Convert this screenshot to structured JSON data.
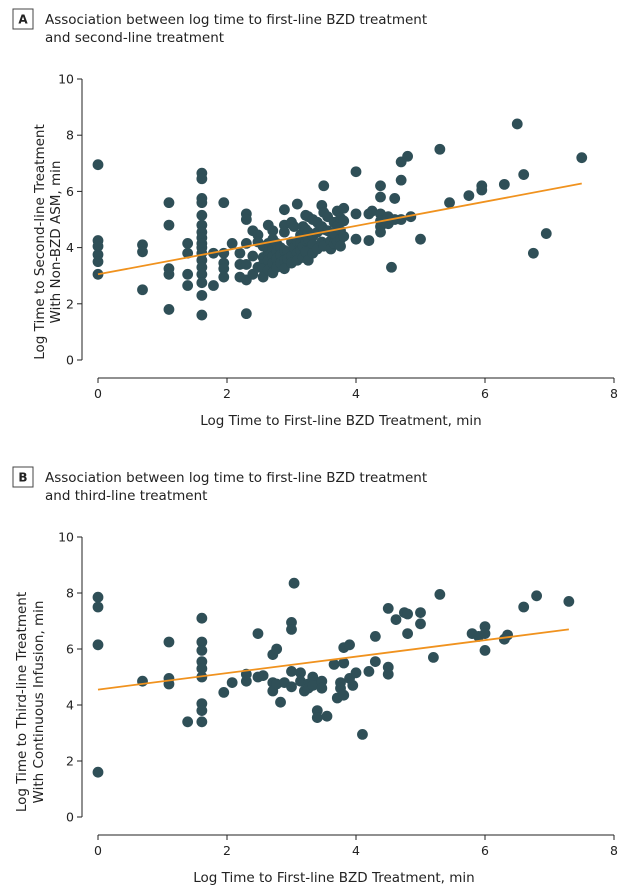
{
  "chart_data": [
    {
      "panel": "A",
      "type": "scatter",
      "title_lines": [
        "Association between log time to first-line BZD treatment",
        "and second-line treatment"
      ],
      "xlabel": "Log Time to First-line BZD Treatment, min",
      "ylabel_lines": [
        "Log Time to Second-line Treatment",
        "With Non-BZD ASM, min"
      ],
      "xlim": [
        0,
        8
      ],
      "ylim": [
        0,
        10
      ],
      "xticks": [
        0,
        2,
        4,
        6,
        8
      ],
      "yticks": [
        0,
        2,
        4,
        6,
        8,
        10
      ],
      "grid": false,
      "colors": {
        "point": "#2f4f57",
        "fit": "#f0921e"
      },
      "fit_line": {
        "x": [
          0,
          7.5
        ],
        "y": [
          3.05,
          6.28
        ]
      },
      "points": [
        [
          0,
          6.95
        ],
        [
          0,
          4.25
        ],
        [
          0,
          4.05
        ],
        [
          0,
          3.75
        ],
        [
          0,
          3.5
        ],
        [
          0,
          3.05
        ],
        [
          0.69,
          4.1
        ],
        [
          0.69,
          3.85
        ],
        [
          0.69,
          2.5
        ],
        [
          1.1,
          5.6
        ],
        [
          1.1,
          4.8
        ],
        [
          1.1,
          3.25
        ],
        [
          1.1,
          3.05
        ],
        [
          1.1,
          1.8
        ],
        [
          1.39,
          4.15
        ],
        [
          1.39,
          3.8
        ],
        [
          1.39,
          3.05
        ],
        [
          1.39,
          2.65
        ],
        [
          1.61,
          6.65
        ],
        [
          1.61,
          6.45
        ],
        [
          1.61,
          5.75
        ],
        [
          1.61,
          5.6
        ],
        [
          1.61,
          5.15
        ],
        [
          1.61,
          4.8
        ],
        [
          1.61,
          4.55
        ],
        [
          1.61,
          4.35
        ],
        [
          1.61,
          4.15
        ],
        [
          1.61,
          4.0
        ],
        [
          1.61,
          3.8
        ],
        [
          1.61,
          3.55
        ],
        [
          1.61,
          3.3
        ],
        [
          1.61,
          3.05
        ],
        [
          1.61,
          2.75
        ],
        [
          1.61,
          2.3
        ],
        [
          1.61,
          1.6
        ],
        [
          1.79,
          3.8
        ],
        [
          1.79,
          2.65
        ],
        [
          1.95,
          5.6
        ],
        [
          1.95,
          3.8
        ],
        [
          1.95,
          3.45
        ],
        [
          1.95,
          3.25
        ],
        [
          1.95,
          2.95
        ],
        [
          2.08,
          4.15
        ],
        [
          2.2,
          3.8
        ],
        [
          2.2,
          3.4
        ],
        [
          2.2,
          2.95
        ],
        [
          2.3,
          5.2
        ],
        [
          2.3,
          5.0
        ],
        [
          2.3,
          4.15
        ],
        [
          2.3,
          3.4
        ],
        [
          2.3,
          2.85
        ],
        [
          2.3,
          1.65
        ],
        [
          2.4,
          4.6
        ],
        [
          2.4,
          3.7
        ],
        [
          2.4,
          3.05
        ],
        [
          2.48,
          4.45
        ],
        [
          2.48,
          4.2
        ],
        [
          2.48,
          3.3
        ],
        [
          2.56,
          4.05
        ],
        [
          2.56,
          3.65
        ],
        [
          2.56,
          3.4
        ],
        [
          2.56,
          3.25
        ],
        [
          2.56,
          2.95
        ],
        [
          2.64,
          4.8
        ],
        [
          2.64,
          4.15
        ],
        [
          2.64,
          3.85
        ],
        [
          2.64,
          3.7
        ],
        [
          2.64,
          3.55
        ],
        [
          2.64,
          3.2
        ],
        [
          2.71,
          4.6
        ],
        [
          2.71,
          4.3
        ],
        [
          2.71,
          3.95
        ],
        [
          2.71,
          3.7
        ],
        [
          2.71,
          3.45
        ],
        [
          2.71,
          3.1
        ],
        [
          2.77,
          4.15
        ],
        [
          2.77,
          3.85
        ],
        [
          2.77,
          3.6
        ],
        [
          2.77,
          3.3
        ],
        [
          2.83,
          4.0
        ],
        [
          2.83,
          3.75
        ],
        [
          2.83,
          3.45
        ],
        [
          2.89,
          5.35
        ],
        [
          2.89,
          4.8
        ],
        [
          2.89,
          4.55
        ],
        [
          2.89,
          3.9
        ],
        [
          2.89,
          3.55
        ],
        [
          2.89,
          3.25
        ],
        [
          2.94,
          3.85
        ],
        [
          2.94,
          3.6
        ],
        [
          3.0,
          4.9
        ],
        [
          3.0,
          4.2
        ],
        [
          3.0,
          3.7
        ],
        [
          3.0,
          3.45
        ],
        [
          3.04,
          4.75
        ],
        [
          3.04,
          4.0
        ],
        [
          3.09,
          5.55
        ],
        [
          3.09,
          4.2
        ],
        [
          3.09,
          3.8
        ],
        [
          3.09,
          3.55
        ],
        [
          3.14,
          4.45
        ],
        [
          3.14,
          4.15
        ],
        [
          3.14,
          3.9
        ],
        [
          3.18,
          4.75
        ],
        [
          3.18,
          4.45
        ],
        [
          3.18,
          4.05
        ],
        [
          3.18,
          3.65
        ],
        [
          3.22,
          5.15
        ],
        [
          3.22,
          4.65
        ],
        [
          3.22,
          4.25
        ],
        [
          3.22,
          3.85
        ],
        [
          3.26,
          5.1
        ],
        [
          3.26,
          4.55
        ],
        [
          3.26,
          4.3
        ],
        [
          3.26,
          3.55
        ],
        [
          3.33,
          5.0
        ],
        [
          3.33,
          4.4
        ],
        [
          3.33,
          4.1
        ],
        [
          3.33,
          3.8
        ],
        [
          3.4,
          4.9
        ],
        [
          3.4,
          4.55
        ],
        [
          3.4,
          3.95
        ],
        [
          3.47,
          5.5
        ],
        [
          3.47,
          4.75
        ],
        [
          3.47,
          4.2
        ],
        [
          3.5,
          6.2
        ],
        [
          3.5,
          5.25
        ],
        [
          3.5,
          4.65
        ],
        [
          3.5,
          4.05
        ],
        [
          3.56,
          5.1
        ],
        [
          3.56,
          4.6
        ],
        [
          3.61,
          4.25
        ],
        [
          3.61,
          3.95
        ],
        [
          3.66,
          4.9
        ],
        [
          3.66,
          4.5
        ],
        [
          3.66,
          4.15
        ],
        [
          3.71,
          5.3
        ],
        [
          3.71,
          4.75
        ],
        [
          3.71,
          4.2
        ],
        [
          3.76,
          5.05
        ],
        [
          3.76,
          4.6
        ],
        [
          3.76,
          4.3
        ],
        [
          3.76,
          4.05
        ],
        [
          3.81,
          5.4
        ],
        [
          3.81,
          4.95
        ],
        [
          3.81,
          4.4
        ],
        [
          4.0,
          6.7
        ],
        [
          4.0,
          5.2
        ],
        [
          4.0,
          4.3
        ],
        [
          4.2,
          5.2
        ],
        [
          4.2,
          4.25
        ],
        [
          4.25,
          5.3
        ],
        [
          4.38,
          6.2
        ],
        [
          4.38,
          5.8
        ],
        [
          4.38,
          5.2
        ],
        [
          4.38,
          4.95
        ],
        [
          4.38,
          4.75
        ],
        [
          4.38,
          4.55
        ],
        [
          4.5,
          5.1
        ],
        [
          4.5,
          4.85
        ],
        [
          4.55,
          3.3
        ],
        [
          4.6,
          5.75
        ],
        [
          4.6,
          5.0
        ],
        [
          4.7,
          7.05
        ],
        [
          4.7,
          6.4
        ],
        [
          4.7,
          5.0
        ],
        [
          4.8,
          7.25
        ],
        [
          4.85,
          5.1
        ],
        [
          5.0,
          4.3
        ],
        [
          5.3,
          7.5
        ],
        [
          5.45,
          5.6
        ],
        [
          5.75,
          5.85
        ],
        [
          5.95,
          6.2
        ],
        [
          5.95,
          6.05
        ],
        [
          6.3,
          6.25
        ],
        [
          6.5,
          8.4
        ],
        [
          6.6,
          6.6
        ],
        [
          6.75,
          3.8
        ],
        [
          6.95,
          4.5
        ],
        [
          7.5,
          7.2
        ]
      ]
    },
    {
      "panel": "B",
      "type": "scatter",
      "title_lines": [
        "Association between log time to first-line BZD treatment",
        "and third-line treatment"
      ],
      "xlabel": "Log Time to First-line BZD Treatment, min",
      "ylabel_lines": [
        "Log Time to Third-line Treatment",
        "With Continuous Infusion, min"
      ],
      "xlim": [
        0,
        8
      ],
      "ylim": [
        0,
        10
      ],
      "xticks": [
        0,
        2,
        4,
        6,
        8
      ],
      "yticks": [
        0,
        2,
        4,
        6,
        8,
        10
      ],
      "grid": false,
      "colors": {
        "point": "#2f4f57",
        "fit": "#f0921e"
      },
      "fit_line": {
        "x": [
          0,
          7.3
        ],
        "y": [
          4.55,
          6.7
        ]
      },
      "points": [
        [
          0,
          7.85
        ],
        [
          0,
          7.5
        ],
        [
          0,
          6.15
        ],
        [
          0,
          1.6
        ],
        [
          0.69,
          4.85
        ],
        [
          1.1,
          6.25
        ],
        [
          1.1,
          4.95
        ],
        [
          1.1,
          4.75
        ],
        [
          1.39,
          3.4
        ],
        [
          1.61,
          7.1
        ],
        [
          1.61,
          6.25
        ],
        [
          1.61,
          5.95
        ],
        [
          1.61,
          5.55
        ],
        [
          1.61,
          5.3
        ],
        [
          1.61,
          5.0
        ],
        [
          1.61,
          4.05
        ],
        [
          1.61,
          3.8
        ],
        [
          1.61,
          3.4
        ],
        [
          1.95,
          4.45
        ],
        [
          2.08,
          4.8
        ],
        [
          2.3,
          5.1
        ],
        [
          2.3,
          4.85
        ],
        [
          2.48,
          6.55
        ],
        [
          2.48,
          5.0
        ],
        [
          2.56,
          5.05
        ],
        [
          2.71,
          5.8
        ],
        [
          2.71,
          4.8
        ],
        [
          2.71,
          4.5
        ],
        [
          2.77,
          6.0
        ],
        [
          2.77,
          4.75
        ],
        [
          2.83,
          4.1
        ],
        [
          2.89,
          4.8
        ],
        [
          3.0,
          6.95
        ],
        [
          3.0,
          6.7
        ],
        [
          3.0,
          5.2
        ],
        [
          3.0,
          4.65
        ],
        [
          3.04,
          8.35
        ],
        [
          3.14,
          5.15
        ],
        [
          3.14,
          4.85
        ],
        [
          3.2,
          4.5
        ],
        [
          3.26,
          4.75
        ],
        [
          3.26,
          4.6
        ],
        [
          3.33,
          5.0
        ],
        [
          3.33,
          4.9
        ],
        [
          3.33,
          4.7
        ],
        [
          3.4,
          3.8
        ],
        [
          3.4,
          3.55
        ],
        [
          3.47,
          4.85
        ],
        [
          3.47,
          4.6
        ],
        [
          3.55,
          3.6
        ],
        [
          3.66,
          5.45
        ],
        [
          3.71,
          4.25
        ],
        [
          3.76,
          4.8
        ],
        [
          3.76,
          4.6
        ],
        [
          3.81,
          6.05
        ],
        [
          3.81,
          5.5
        ],
        [
          3.81,
          4.35
        ],
        [
          3.9,
          6.15
        ],
        [
          3.9,
          4.95
        ],
        [
          3.95,
          4.7
        ],
        [
          4.0,
          5.15
        ],
        [
          4.1,
          2.95
        ],
        [
          4.2,
          5.2
        ],
        [
          4.3,
          6.45
        ],
        [
          4.3,
          5.55
        ],
        [
          4.5,
          7.45
        ],
        [
          4.5,
          5.35
        ],
        [
          4.5,
          5.1
        ],
        [
          4.62,
          7.05
        ],
        [
          4.75,
          7.3
        ],
        [
          4.8,
          7.25
        ],
        [
          4.8,
          6.55
        ],
        [
          5.0,
          6.9
        ],
        [
          5.0,
          7.3
        ],
        [
          5.2,
          5.7
        ],
        [
          5.3,
          7.95
        ],
        [
          5.8,
          6.55
        ],
        [
          5.9,
          6.45
        ],
        [
          6.0,
          6.8
        ],
        [
          6.0,
          6.55
        ],
        [
          6.0,
          5.95
        ],
        [
          6.3,
          6.35
        ],
        [
          6.35,
          6.5
        ],
        [
          6.6,
          7.5
        ],
        [
          6.8,
          7.9
        ],
        [
          7.3,
          7.7
        ]
      ]
    }
  ],
  "panels": [
    {
      "badge": "A"
    },
    {
      "badge": "B"
    }
  ]
}
